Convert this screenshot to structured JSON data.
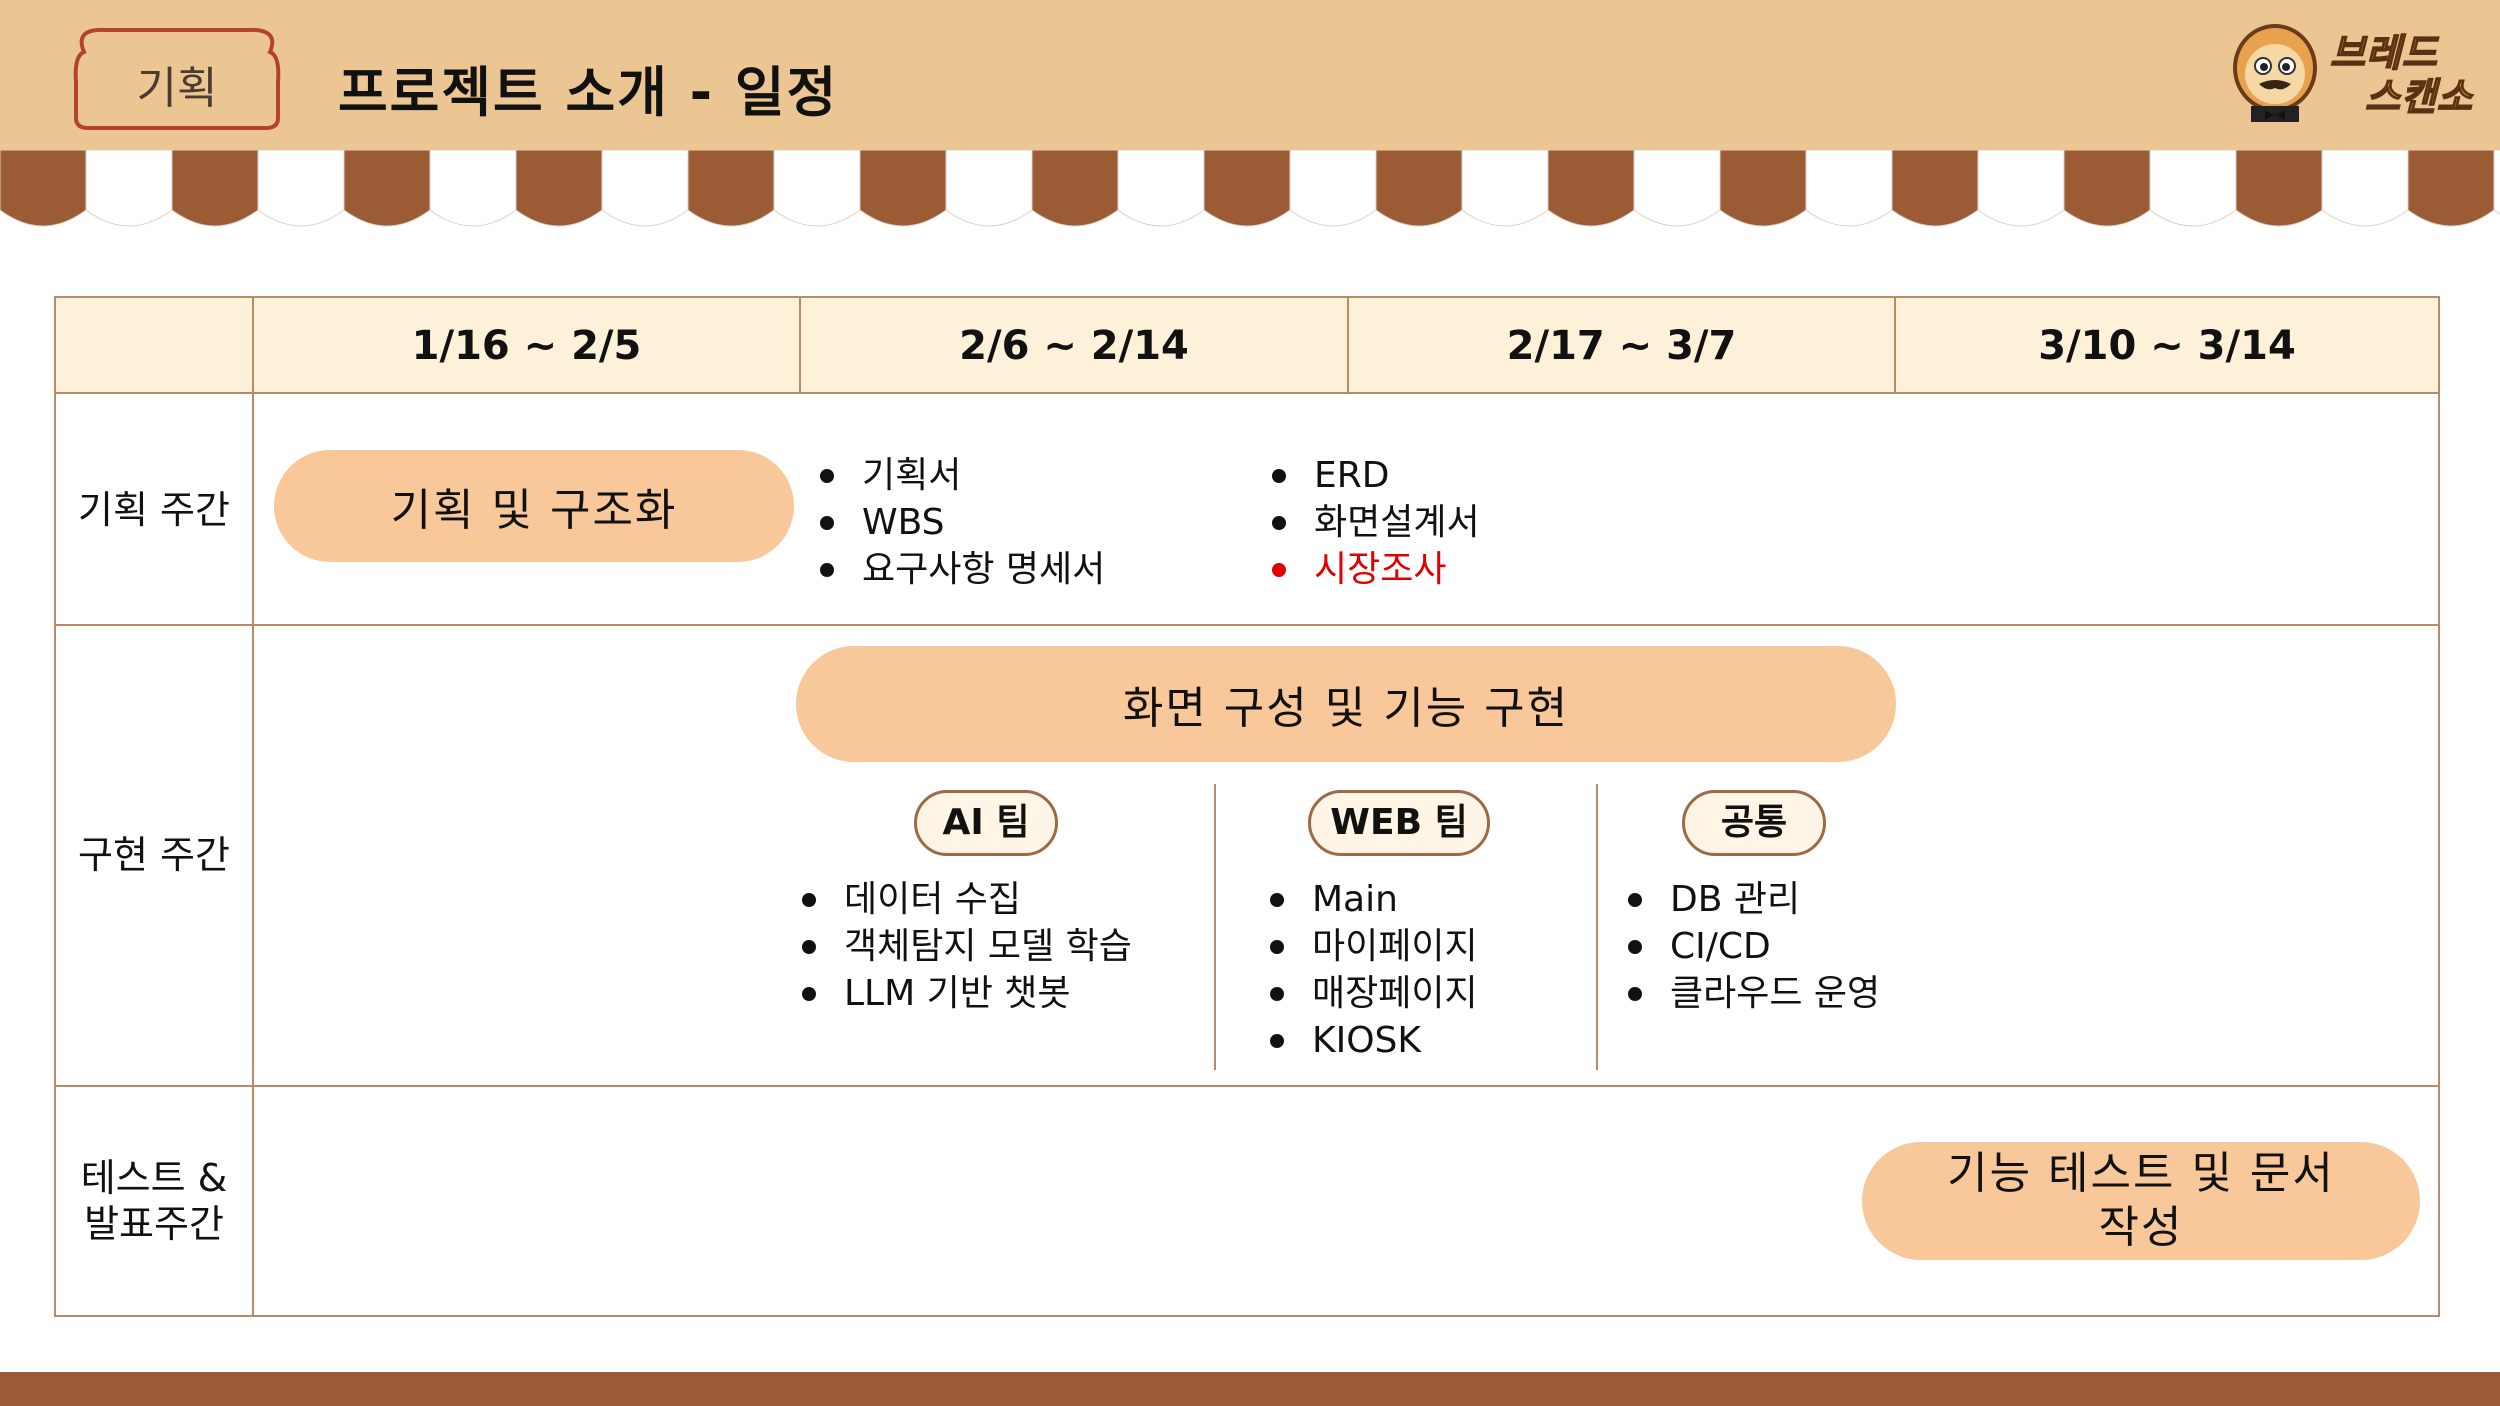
{
  "header": {
    "tag_label": "기획",
    "title": "프로젝트 소개 - 일정",
    "logo_line1": "브레드",
    "logo_line2": "스캔소"
  },
  "schedule": {
    "periods": [
      "1/16  ~  2/5",
      "2/6 ~ 2/14",
      "2/17 ~ 3/7",
      "3/10 ~ 3/14"
    ],
    "rows": {
      "planning": {
        "label": "기획 주간",
        "pill": "기획 및 구조화",
        "list_a": [
          "기획서",
          "WBS",
          "요구사항 명세서"
        ],
        "list_b": [
          "ERD",
          "화면설계서"
        ],
        "list_b_highlight": "시장조사",
        "highlight_color": "#e00000"
      },
      "implementation": {
        "label": "구현 주간",
        "pill": "화면 구성 및 기능 구현",
        "teams": [
          {
            "name": "AI 팀",
            "items": [
              "데이터 수집",
              "객체탐지 모델 학습",
              "LLM 기반 챗봇"
            ]
          },
          {
            "name": "WEB 팀",
            "items": [
              "Main",
              "마이페이지",
              "매장페이지",
              "KIOSK"
            ]
          },
          {
            "name": "공통",
            "items": [
              "DB 관리",
              "CI/CD",
              "클라우드 운영"
            ]
          }
        ]
      },
      "testing": {
        "label_line1": "테스트 &",
        "label_line2": "발표주간",
        "pill_line1": "기능 테스트 및 문서",
        "pill_line2": "작성"
      }
    }
  },
  "colors": {
    "header_bg": "#ecc692",
    "awning_brown": "#9a5b35",
    "pill_bg": "#f8c89a",
    "grid_line": "#b98a68",
    "header_row_bg": "#fdf2d9"
  }
}
